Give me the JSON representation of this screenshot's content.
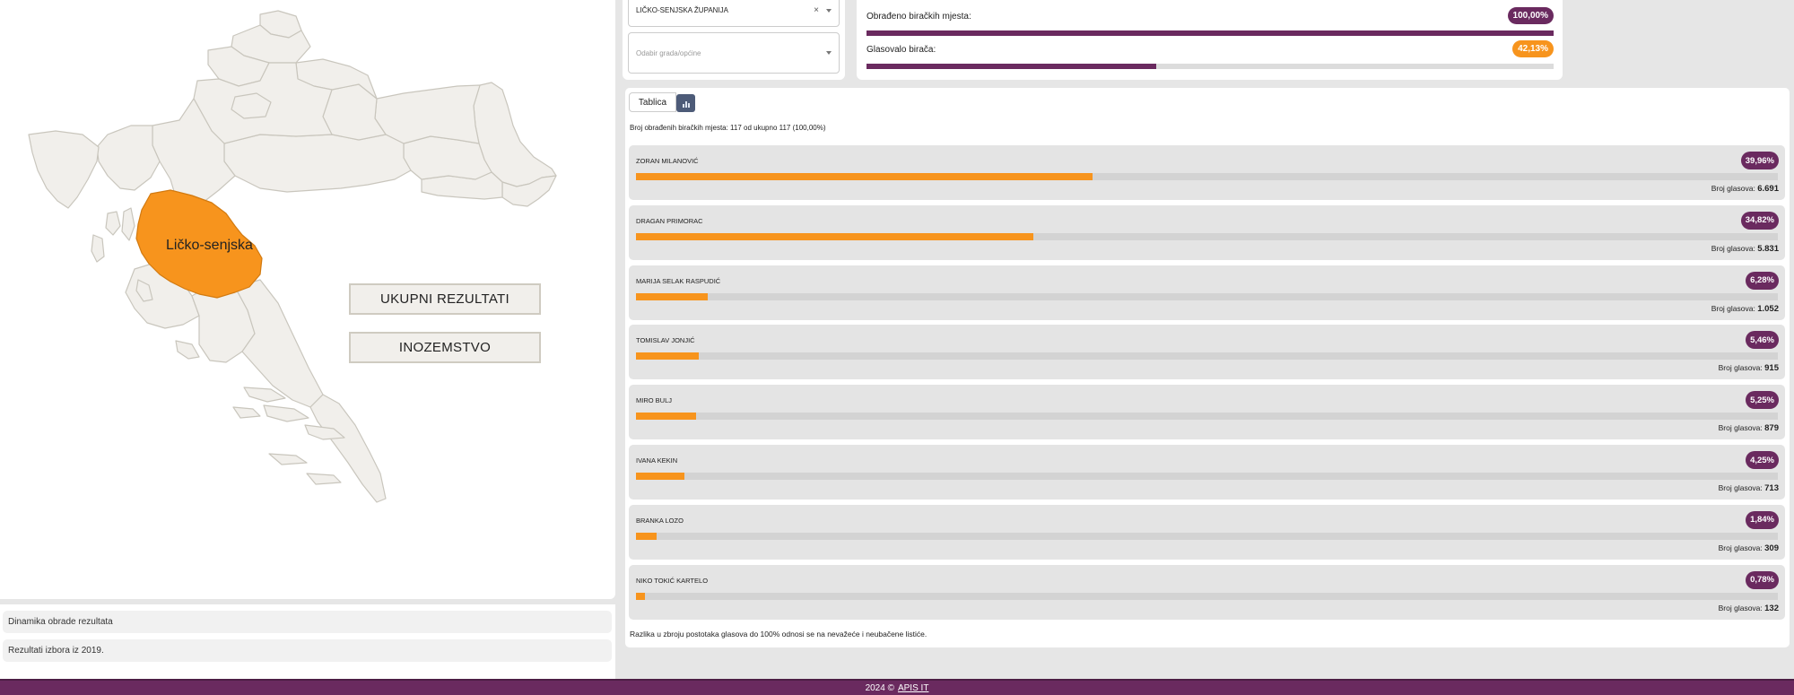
{
  "map": {
    "region_label": "Ličko-senjska",
    "btn_total": "UKUPNI REZULTATI",
    "btn_abroad": "INOZEMSTVO",
    "colors": {
      "highlight": "#f7941d",
      "land": "#f1efeb",
      "border": "#c9c6bd"
    }
  },
  "accordion": [
    {
      "label": "Dinamika obrade rezultata"
    },
    {
      "label": "Rezultati izbora iz 2019."
    }
  ],
  "filters": {
    "county_value": "LIČKO-SENJSKA ŽUPANIJA",
    "clear_icon": "×",
    "city_placeholder": "Odabir grada/općine"
  },
  "stats": {
    "processed_label": "Obrađeno biračkih mjesta:",
    "processed_pct": "100,00%",
    "processed_fraction": 1.0,
    "turnout_label": "Glasovalo birača:",
    "turnout_pct": "42,13%",
    "turnout_fraction": 0.4213
  },
  "results": {
    "tab_table": "Tablica",
    "tab_chart_icon": "bar-chart-icon",
    "processed_text": "Broj obrađenih biračkih mjesta: 117 od ukupno 117 (100,00%)",
    "votes_label": "Broj glasova:",
    "candidates": [
      {
        "name": "ZORAN MILANOVIĆ",
        "pct": "39,96%",
        "votes": "6.691",
        "share": 0.3996
      },
      {
        "name": "DRAGAN PRIMORAC",
        "pct": "34,82%",
        "votes": "5.831",
        "share": 0.3482
      },
      {
        "name": "MARIJA SELAK RASPUDIĆ",
        "pct": "6,28%",
        "votes": "1.052",
        "share": 0.0628
      },
      {
        "name": "TOMISLAV JONJIĆ",
        "pct": "5,46%",
        "votes": "915",
        "share": 0.0546
      },
      {
        "name": "MIRO BULJ",
        "pct": "5,25%",
        "votes": "879",
        "share": 0.0525
      },
      {
        "name": "IVANA KEKIN",
        "pct": "4,25%",
        "votes": "713",
        "share": 0.0425
      },
      {
        "name": "BRANKA LOZO",
        "pct": "1,84%",
        "votes": "309",
        "share": 0.0184
      },
      {
        "name": "NIKO TOKIĆ KARTELO",
        "pct": "0,78%",
        "votes": "132",
        "share": 0.0078
      }
    ],
    "note": "Razlika u zbroju postotaka glasova do 100% odnosi se na nevažeće i neubačene listiće."
  },
  "footer": {
    "copyright": "2024 ©",
    "link": "APIS IT"
  }
}
